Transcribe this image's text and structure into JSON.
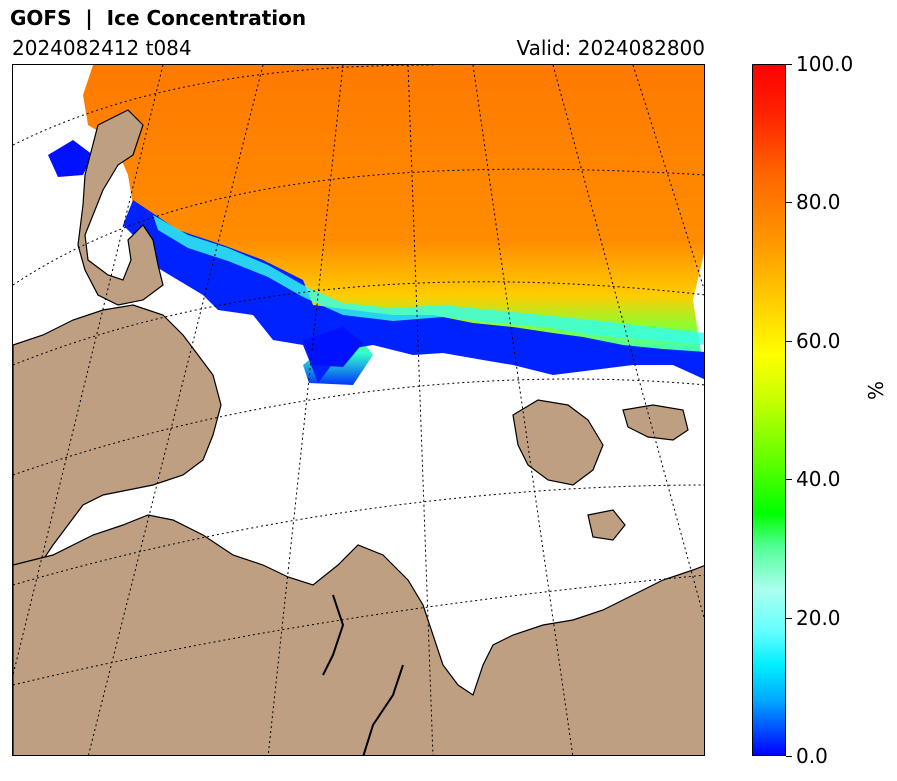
{
  "header": {
    "title": "GOFS  |  Ice Concentration",
    "run": "2024082412 t084",
    "valid": "Valid: 2024082800"
  },
  "map": {
    "variable": "Ice Concentration",
    "colors": {
      "land": "#bf9f82",
      "ocean": "#ffffff",
      "coastline": "#000000",
      "graticule": "#000000"
    },
    "graticule_style": "dotted"
  },
  "colorbar": {
    "unit": "%",
    "ticks": [
      "0.0",
      "20.0",
      "40.0",
      "60.0",
      "80.0",
      "100.0"
    ],
    "min": 0,
    "max": 100,
    "colormap": [
      "#0000ff",
      "#00ffff",
      "#00ff00",
      "#ffff00",
      "#ff9900",
      "#ff0000"
    ]
  }
}
